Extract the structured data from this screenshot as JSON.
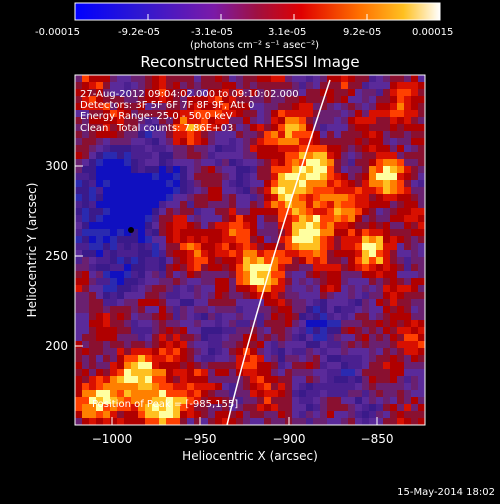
{
  "colorbar": {
    "tick_labels": [
      "-0.00015",
      "-9.2e-05",
      "-3.1e-05",
      "3.1e-05",
      "9.2e-05",
      "0.00015"
    ],
    "units_label": "(photons cm⁻² s⁻¹ asec⁻²)",
    "stops": [
      "#0000ff",
      "#4020c0",
      "#8020a0",
      "#c00000",
      "#ff4000",
      "#ffa000",
      "#ffffff"
    ]
  },
  "plot": {
    "title": "Reconstructed RHESSI Image",
    "xlabel": "Heliocentric X (arcsec)",
    "ylabel": "Heliocentric Y (arcsec)",
    "x_ticks": [
      "−1000",
      "−950",
      "−900",
      "−850"
    ],
    "y_ticks": [
      "200",
      "250",
      "300"
    ],
    "xlim": [
      -1021,
      -822
    ],
    "ylim": [
      155,
      350
    ],
    "info": {
      "line1": "27-Aug-2012 09:04:02.000 to 09:10:02.000",
      "line2": "Detectors: 3F 5F 6F 7F 8F 9F, Att 0",
      "line3": "Energy Range: 25.0 - 50.0 keV",
      "line4_a": "Clean",
      "line4_b": "Total counts: 7.86E+03"
    },
    "peak_label": "Position of Peak = [-985,155]"
  },
  "footer": {
    "timestamp": "15-May-2014 18:02"
  }
}
